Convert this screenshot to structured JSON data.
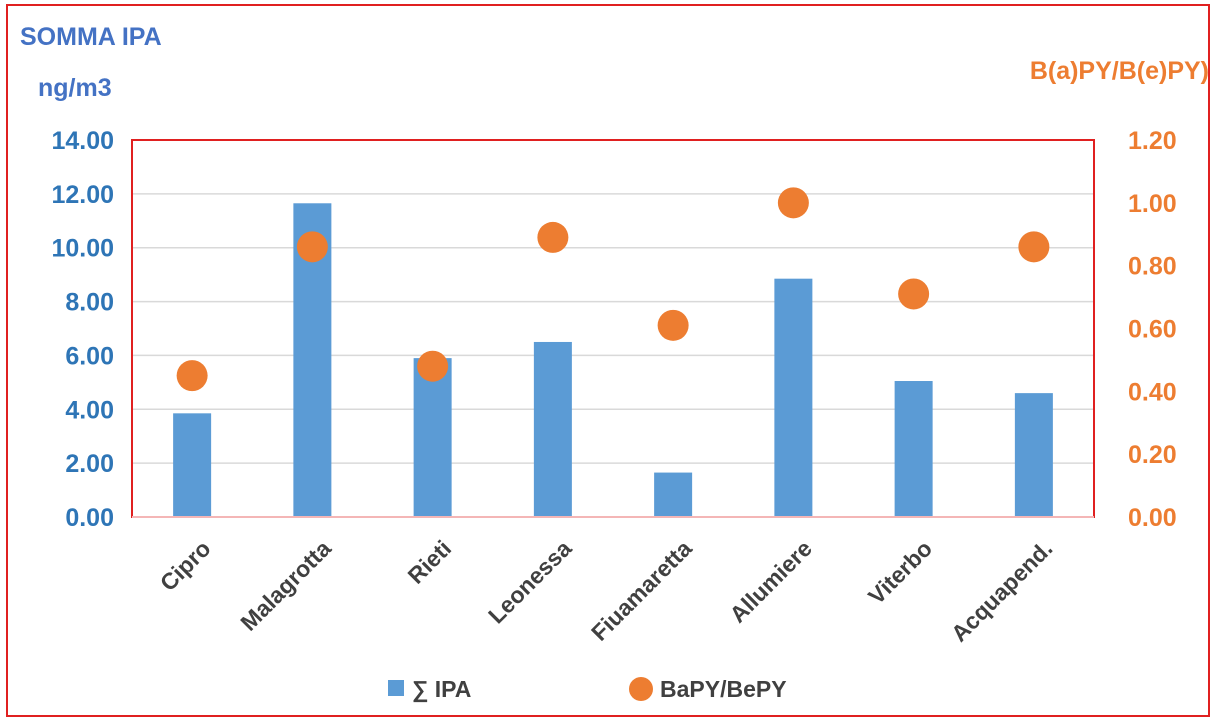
{
  "chart_data": {
    "type": "bar",
    "categories": [
      "Cipro",
      "Malagrotta",
      "Rieti",
      "Leonessa",
      "Fiuamaretta",
      "Allumiere",
      "Viterbo",
      "Acquapend."
    ],
    "series": [
      {
        "name": "∑ IPA",
        "type": "bar",
        "axis": "left",
        "color": "#5b9bd5",
        "values": [
          3.85,
          11.65,
          5.9,
          6.5,
          1.65,
          8.85,
          5.05,
          4.6
        ]
      },
      {
        "name": "BaPY/BePY",
        "type": "scatter",
        "axis": "right",
        "color": "#ed7d31",
        "values": [
          0.45,
          0.86,
          0.48,
          0.89,
          0.61,
          1.0,
          0.71,
          0.86
        ]
      }
    ],
    "ylabel": "SOMMA IPA",
    "ylabel_unit": "ng/m3",
    "y2label": "B(a)PY/B(e)PY)",
    "ylim": [
      0,
      14
    ],
    "y2lim": [
      0,
      1.2
    ],
    "yticks": [
      "0.00",
      "2.00",
      "4.00",
      "6.00",
      "8.00",
      "10.00",
      "12.00",
      "14.00"
    ],
    "y2ticks": [
      "0.00",
      "0.20",
      "0.40",
      "0.60",
      "0.80",
      "1.00",
      "1.20"
    ],
    "grid": true,
    "legend_position": "bottom",
    "colors": {
      "frame_border": "#e02020",
      "left_axis": "#2e75b6",
      "right_axis": "#ed7d31",
      "grid": "#d9d9d9"
    }
  }
}
